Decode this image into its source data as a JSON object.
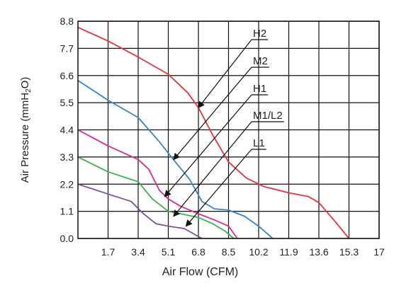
{
  "chart_data": {
    "type": "line",
    "xlabel": "Air Flow (CFM)",
    "ylabel": "Air Pressure (mmH2O)",
    "ylabel_parts": {
      "main": "Air Pressure (mmH",
      "sub": "2",
      "tail": "O)"
    },
    "xlim": [
      0,
      17
    ],
    "ylim": [
      0,
      8.8
    ],
    "xticks": [
      "1.7",
      "3.4",
      "5.1",
      "6.8",
      "8.5",
      "10.2",
      "11.9",
      "13.6",
      "15.3",
      "17"
    ],
    "yticks": [
      "0.0",
      "1.1",
      "2.2",
      "3.3",
      "4.4",
      "5.5",
      "6.6",
      "7.7",
      "8.8"
    ],
    "grid": true,
    "series": [
      {
        "name": "H2",
        "color": "#e8333a",
        "points": [
          [
            0,
            8.55
          ],
          [
            1.7,
            8.0
          ],
          [
            3.4,
            7.35
          ],
          [
            5.1,
            6.65
          ],
          [
            6.2,
            5.9
          ],
          [
            6.8,
            5.3
          ],
          [
            7.6,
            4.2
          ],
          [
            8.5,
            3.1
          ],
          [
            9.5,
            2.45
          ],
          [
            10.5,
            2.1
          ],
          [
            11.9,
            1.85
          ],
          [
            13.0,
            1.7
          ],
          [
            13.6,
            1.45
          ],
          [
            14.5,
            0.7
          ],
          [
            15.3,
            0.0
          ]
        ]
      },
      {
        "name": "M2",
        "color": "#3386c8",
        "points": [
          [
            0,
            6.4
          ],
          [
            1.7,
            5.6
          ],
          [
            3.4,
            4.9
          ],
          [
            4.5,
            4.0
          ],
          [
            5.5,
            3.1
          ],
          [
            6.3,
            2.4
          ],
          [
            7.0,
            1.5
          ],
          [
            7.7,
            1.2
          ],
          [
            8.5,
            1.15
          ],
          [
            9.4,
            0.9
          ],
          [
            10.2,
            0.5
          ],
          [
            11.0,
            0.0
          ]
        ]
      },
      {
        "name": "H1",
        "color": "#da2a94",
        "points": [
          [
            0,
            4.4
          ],
          [
            1.7,
            3.75
          ],
          [
            3.4,
            3.2
          ],
          [
            4.0,
            2.8
          ],
          [
            4.6,
            1.95
          ],
          [
            5.1,
            1.6
          ],
          [
            5.8,
            1.3
          ],
          [
            6.8,
            1.0
          ],
          [
            7.7,
            0.75
          ],
          [
            8.5,
            0.5
          ],
          [
            9.0,
            0.0
          ]
        ]
      },
      {
        "name": "M1/L2",
        "color": "#3cb24a",
        "points": [
          [
            0,
            3.3
          ],
          [
            1.7,
            2.7
          ],
          [
            3.4,
            2.3
          ],
          [
            4.2,
            1.6
          ],
          [
            5.1,
            1.1
          ],
          [
            5.8,
            1.0
          ],
          [
            6.8,
            0.85
          ],
          [
            7.6,
            0.6
          ],
          [
            8.3,
            0.3
          ],
          [
            8.8,
            0.0
          ]
        ]
      },
      {
        "name": "L1",
        "color": "#7e4fa3",
        "points": [
          [
            0,
            2.2
          ],
          [
            1.7,
            1.8
          ],
          [
            3.0,
            1.5
          ],
          [
            3.7,
            1.0
          ],
          [
            4.4,
            0.6
          ],
          [
            5.1,
            0.5
          ],
          [
            6.0,
            0.4
          ],
          [
            6.5,
            0.2
          ],
          [
            7.0,
            0.0
          ]
        ]
      }
    ],
    "annotations": [
      {
        "label": "H2",
        "target": [
          6.8,
          5.3
        ]
      },
      {
        "label": "M2",
        "target": [
          5.4,
          3.2
        ]
      },
      {
        "label": "H1",
        "target": [
          4.9,
          1.7
        ]
      },
      {
        "label": "M1/L2",
        "target": [
          5.4,
          0.9
        ]
      },
      {
        "label": "L1",
        "target": [
          6.1,
          0.5
        ]
      }
    ]
  }
}
